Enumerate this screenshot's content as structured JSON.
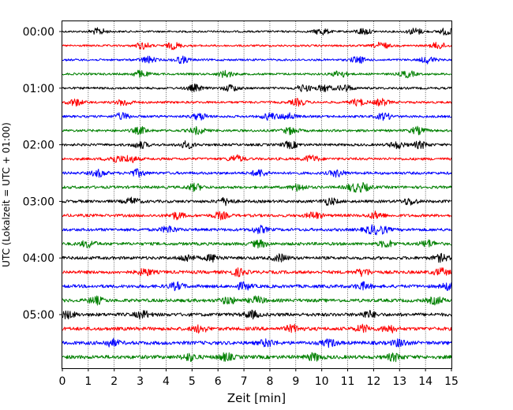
{
  "chart_data": {
    "type": "line",
    "title": "",
    "xlabel": "Zeit  [min]",
    "ylabel": "UTC (Lokalzeit = UTC + 01:00)",
    "xlim": [
      0,
      15
    ],
    "x_ticks": [
      0,
      1,
      2,
      3,
      4,
      5,
      6,
      7,
      8,
      9,
      10,
      11,
      12,
      13,
      14,
      15
    ],
    "y_tick_labels": [
      "00:00",
      "01:00",
      "02:00",
      "03:00",
      "04:00",
      "05:00"
    ],
    "y_tick_trace_index": [
      0,
      4,
      8,
      12,
      16,
      20
    ],
    "grid": "vertical dotted at each minute",
    "trace_interval_min": 15,
    "trace_count": 24,
    "trace_colors": [
      "#000000",
      "#ff0000",
      "#0000ff",
      "#008000"
    ],
    "series": [
      {
        "start": "00:00",
        "color": "#000000",
        "bursts": [
          1.4,
          10.0,
          11.6,
          13.6,
          14.8
        ]
      },
      {
        "start": "00:15",
        "color": "#ff0000",
        "bursts": [
          3.1,
          4.3,
          12.3,
          14.5
        ]
      },
      {
        "start": "00:30",
        "color": "#0000ff",
        "bursts": [
          3.3,
          4.6,
          11.4,
          14.1
        ]
      },
      {
        "start": "00:45",
        "color": "#008000",
        "bursts": [
          3.0,
          6.3,
          10.7,
          13.3
        ]
      },
      {
        "start": "01:00",
        "color": "#000000",
        "bursts": [
          5.1,
          6.5,
          9.3,
          10.1,
          10.9
        ]
      },
      {
        "start": "01:15",
        "color": "#ff0000",
        "bursts": [
          0.5,
          2.4,
          9.1,
          11.4,
          12.3
        ]
      },
      {
        "start": "01:30",
        "color": "#0000ff",
        "bursts": [
          2.3,
          5.3,
          8.0,
          8.7,
          12.4
        ]
      },
      {
        "start": "01:45",
        "color": "#008000",
        "bursts": [
          3.0,
          5.2,
          8.8,
          13.7
        ]
      },
      {
        "start": "02:00",
        "color": "#000000",
        "bursts": [
          3.0,
          4.8,
          8.8,
          12.9,
          13.8
        ]
      },
      {
        "start": "02:15",
        "color": "#ff0000",
        "bursts": [
          2.0,
          2.6,
          6.7,
          9.6
        ]
      },
      {
        "start": "02:30",
        "color": "#0000ff",
        "bursts": [
          1.4,
          2.9,
          7.6,
          10.6
        ]
      },
      {
        "start": "02:45",
        "color": "#008000",
        "bursts": [
          5.1,
          9.1,
          11.2,
          11.6
        ]
      },
      {
        "start": "03:00",
        "color": "#000000",
        "bursts": [
          2.7,
          6.3,
          10.3,
          13.4
        ]
      },
      {
        "start": "03:15",
        "color": "#ff0000",
        "bursts": [
          4.4,
          6.1,
          9.7,
          12.1
        ]
      },
      {
        "start": "03:30",
        "color": "#0000ff",
        "bursts": [
          4.1,
          7.6,
          11.9,
          12.3
        ]
      },
      {
        "start": "03:45",
        "color": "#008000",
        "bursts": [
          1.0,
          7.6,
          12.5,
          14.1
        ]
      },
      {
        "start": "04:00",
        "color": "#000000",
        "bursts": [
          4.8,
          5.8,
          8.4,
          14.6
        ]
      },
      {
        "start": "04:15",
        "color": "#ff0000",
        "bursts": [
          3.2,
          6.8,
          11.6,
          14.6
        ]
      },
      {
        "start": "04:30",
        "color": "#0000ff",
        "bursts": [
          4.4,
          7.0,
          11.6,
          14.9
        ]
      },
      {
        "start": "04:45",
        "color": "#008000",
        "bursts": [
          1.3,
          6.4,
          7.5,
          14.4
        ]
      },
      {
        "start": "05:00",
        "color": "#000000",
        "bursts": [
          0.2,
          3.1,
          7.3,
          11.8
        ]
      },
      {
        "start": "05:15",
        "color": "#ff0000",
        "bursts": [
          5.3,
          8.9,
          11.6,
          12.6
        ]
      },
      {
        "start": "05:30",
        "color": "#0000ff",
        "bursts": [
          1.9,
          7.9,
          10.3,
          13.0
        ]
      },
      {
        "start": "05:45",
        "color": "#008000",
        "bursts": [
          4.9,
          6.3,
          9.7,
          12.8
        ]
      }
    ]
  }
}
